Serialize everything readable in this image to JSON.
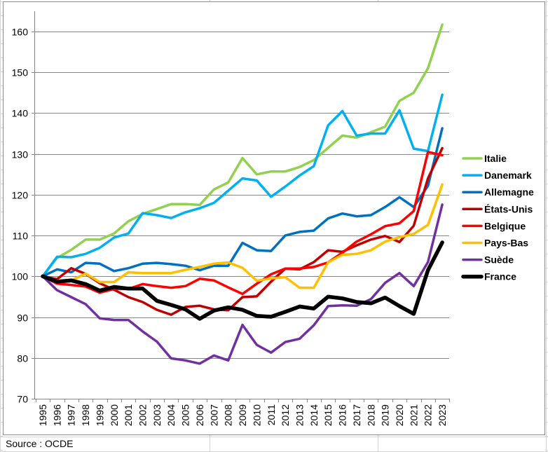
{
  "source_note": "Source : OCDE",
  "chart_data": {
    "type": "line",
    "title": "",
    "xlabel": "",
    "ylabel": "",
    "ylim": [
      70,
      160
    ],
    "yticks": [
      70,
      80,
      90,
      100,
      110,
      120,
      130,
      140,
      150,
      160
    ],
    "grid": "horizontal",
    "legend_position": "right",
    "x": [
      "1995",
      "1996",
      "1997",
      "1998",
      "1999",
      "2000",
      "2001",
      "2002",
      "2003",
      "2004",
      "2005",
      "2006",
      "2007",
      "2008",
      "2009",
      "2010",
      "2011",
      "2012",
      "2013",
      "2014",
      "2015",
      "2016",
      "2017",
      "2018",
      "2019",
      "2020",
      "2021",
      "2022",
      "2023"
    ],
    "series": [
      {
        "name": "Italie",
        "color": "#92D050",
        "width": "normal",
        "values": [
          100,
          104.5,
          106.5,
          109,
          109,
          110.5,
          113.5,
          115.3,
          116.5,
          117.7,
          117.7,
          117.5,
          121.3,
          123,
          129,
          125,
          125.7,
          125.7,
          126.8,
          128.5,
          131.5,
          134.5,
          134,
          135.3,
          136.7,
          143,
          145,
          151,
          161.7
        ]
      },
      {
        "name": "Danemark",
        "color": "#00B0F0",
        "width": "normal",
        "values": [
          100,
          104.8,
          104.7,
          105.5,
          107,
          109.5,
          110.5,
          115.5,
          115,
          114.3,
          115.7,
          116.7,
          118,
          121,
          124,
          123.5,
          119.5,
          122,
          124.7,
          127,
          137,
          140.5,
          134.5,
          135,
          135,
          140.7,
          131.3,
          130.7,
          144.5
        ]
      },
      {
        "name": "Allemagne",
        "color": "#0070C0",
        "width": "normal",
        "values": [
          100,
          101.7,
          101,
          103.3,
          103.1,
          101.3,
          102,
          103.1,
          103.3,
          103,
          102.6,
          101.5,
          102.6,
          102.6,
          108.2,
          106.4,
          106.2,
          110,
          110.9,
          111.2,
          114.2,
          115.4,
          114.7,
          115,
          117,
          119.4,
          117,
          122.2,
          136.3
        ]
      },
      {
        "name": "États-Unis",
        "color": "#C00000",
        "width": "normal",
        "values": [
          100,
          99.3,
          102,
          100.6,
          98.3,
          96.7,
          94.9,
          93.7,
          91.8,
          90.6,
          92.5,
          92.8,
          91.9,
          91.7,
          94.9,
          95.1,
          98.7,
          101.9,
          101.7,
          103.5,
          106.4,
          106,
          107.6,
          109,
          109.9,
          108.4,
          112.4,
          124,
          131.4
        ]
      },
      {
        "name": "Belgique",
        "color": "#FF0000",
        "width": "normal",
        "values": [
          100,
          98.2,
          97.9,
          97.5,
          96,
          96.9,
          96.9,
          98.1,
          97.6,
          97.2,
          97.6,
          99.4,
          99,
          97.3,
          95.7,
          98.2,
          100.5,
          101.9,
          101.9,
          102.3,
          103.4,
          105.8,
          108.5,
          110.3,
          112.3,
          113,
          116,
          130.5,
          129.7
        ]
      },
      {
        "name": "Pays-Bas",
        "color": "#FFC000",
        "width": "normal",
        "values": [
          100,
          98.6,
          99,
          100.7,
          98.6,
          98.6,
          101,
          100.8,
          100.8,
          100.8,
          101.6,
          102.3,
          103.1,
          103.4,
          102.1,
          98.9,
          99.5,
          99.8,
          97.2,
          97.2,
          103.4,
          105.3,
          105.5,
          106.4,
          108.5,
          109.6,
          110.4,
          112.6,
          122.5
        ]
      },
      {
        "name": "Suède",
        "color": "#7030A0",
        "width": "normal",
        "values": [
          100,
          96.6,
          94.9,
          93.2,
          89.7,
          89.3,
          89.3,
          86.5,
          84,
          79.9,
          79.4,
          78.6,
          80.6,
          79.4,
          88.1,
          83.2,
          81.3,
          83.9,
          84.7,
          88,
          92.7,
          92.9,
          92.8,
          94.4,
          98.4,
          100.8,
          97.6,
          103.5,
          117.6
        ]
      },
      {
        "name": "France",
        "color": "#000000",
        "width": "thick",
        "values": [
          100,
          98.7,
          99,
          98.1,
          96.5,
          97.4,
          97,
          97,
          94,
          93,
          91.9,
          89.6,
          91.6,
          92.4,
          91.8,
          90.3,
          90.1,
          91.3,
          92.6,
          92.1,
          95,
          94.6,
          93.7,
          93.4,
          94.8,
          92.7,
          90.8,
          101.5,
          108.3
        ]
      }
    ]
  }
}
